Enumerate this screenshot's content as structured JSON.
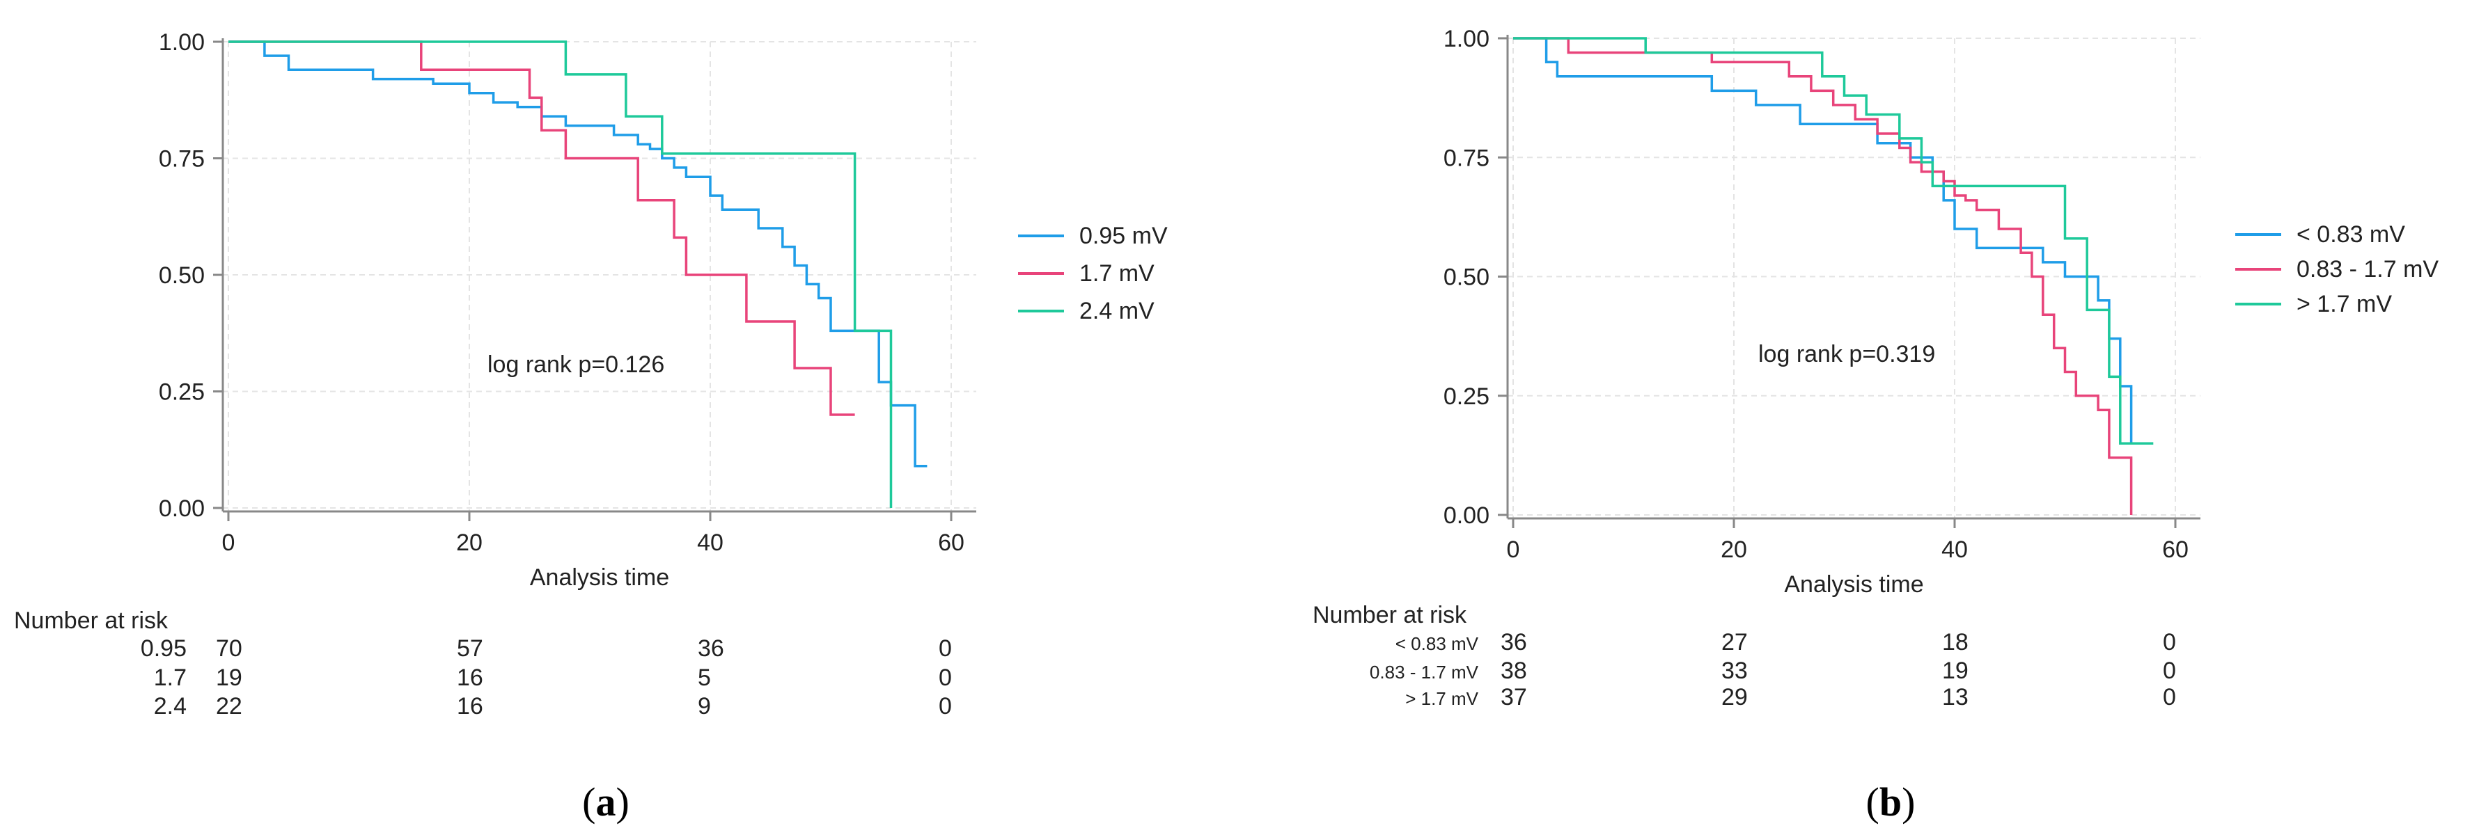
{
  "colors": {
    "blue": "#1f9de8",
    "pink": "#e8447a",
    "green": "#1ec99a",
    "axis": "#888888",
    "grid": "#e4e4e4"
  },
  "chart_data": [
    {
      "id": "a",
      "type": "line",
      "subtype": "kaplan-meier",
      "caption_letter": "a",
      "xlabel": "Analysis time",
      "ylabel": "",
      "xlim": [
        0,
        60
      ],
      "ylim": [
        0,
        1
      ],
      "x_ticks": [
        "0",
        "20",
        "40",
        "60"
      ],
      "y_ticks": [
        "0.00",
        "0.25",
        "0.50",
        "0.75",
        "1.00"
      ],
      "annotation": "log rank p=0.126",
      "legend_position": "right",
      "series": [
        {
          "name": "0.95 mV",
          "color_key": "blue",
          "x": [
            0,
            3,
            3,
            5,
            5,
            12,
            12,
            17,
            17,
            20,
            20,
            22,
            22,
            24,
            24,
            26,
            26,
            28,
            28,
            32,
            32,
            34,
            34,
            35,
            35,
            36,
            36,
            37,
            37,
            38,
            38,
            40,
            40,
            41,
            41,
            44,
            44,
            46,
            46,
            47,
            47,
            48,
            48,
            49,
            49,
            50,
            50,
            52,
            52,
            54,
            54,
            55,
            55,
            56,
            56,
            57,
            57,
            58
          ],
          "y": [
            1,
            1,
            0.97,
            0.97,
            0.94,
            0.94,
            0.92,
            0.92,
            0.91,
            0.91,
            0.89,
            0.89,
            0.87,
            0.87,
            0.86,
            0.86,
            0.84,
            0.84,
            0.82,
            0.82,
            0.8,
            0.8,
            0.78,
            0.78,
            0.77,
            0.77,
            0.75,
            0.75,
            0.73,
            0.73,
            0.71,
            0.71,
            0.67,
            0.67,
            0.64,
            0.64,
            0.6,
            0.6,
            0.56,
            0.56,
            0.52,
            0.52,
            0.48,
            0.48,
            0.45,
            0.45,
            0.38,
            0.38,
            0.38,
            0.38,
            0.27,
            0.27,
            0.22,
            0.22,
            0.22,
            0.22,
            0.09,
            0.09
          ]
        },
        {
          "name": "1.7 mV",
          "color_key": "pink",
          "x": [
            0,
            16,
            16,
            25,
            25,
            26,
            26,
            28,
            28,
            33,
            33,
            34,
            34,
            37,
            37,
            38,
            38,
            43,
            43,
            47,
            47,
            50,
            50,
            52
          ],
          "y": [
            1,
            1,
            0.94,
            0.94,
            0.88,
            0.88,
            0.81,
            0.81,
            0.75,
            0.75,
            0.75,
            0.75,
            0.66,
            0.66,
            0.58,
            0.58,
            0.5,
            0.5,
            0.4,
            0.4,
            0.3,
            0.3,
            0.2,
            0.2
          ]
        },
        {
          "name": "2.4 mV",
          "color_key": "green",
          "x": [
            0,
            28,
            28,
            33,
            33,
            36,
            36,
            52,
            52,
            55,
            55
          ],
          "y": [
            1,
            1,
            0.93,
            0.93,
            0.84,
            0.84,
            0.76,
            0.76,
            0.38,
            0.38,
            0.0
          ]
        }
      ],
      "risk_table": {
        "title": "Number at risk",
        "times": [
          0,
          20,
          40,
          60
        ],
        "rows": [
          {
            "label": "0.95",
            "values": [
              "70",
              "57",
              "36",
              "0"
            ]
          },
          {
            "label": "1.7",
            "values": [
              "19",
              "16",
              "5",
              "0"
            ]
          },
          {
            "label": "2.4",
            "values": [
              "22",
              "16",
              "9",
              "0"
            ]
          }
        ]
      }
    },
    {
      "id": "b",
      "type": "line",
      "subtype": "kaplan-meier",
      "caption_letter": "b",
      "xlabel": "Analysis time",
      "ylabel": "",
      "xlim": [
        0,
        60
      ],
      "ylim": [
        0,
        1
      ],
      "x_ticks": [
        "0",
        "20",
        "40",
        "60"
      ],
      "y_ticks": [
        "0.00",
        "0.25",
        "0.50",
        "0.75",
        "1.00"
      ],
      "annotation": "log rank p=0.319",
      "legend_position": "right",
      "series": [
        {
          "name": "< 0.83 mV",
          "color_key": "blue",
          "x": [
            0,
            3,
            3,
            4,
            4,
            18,
            18,
            22,
            22,
            26,
            26,
            33,
            33,
            36,
            36,
            38,
            38,
            39,
            39,
            40,
            40,
            42,
            42,
            48,
            48,
            50,
            50,
            53,
            53,
            54,
            54,
            55,
            55,
            56,
            56
          ],
          "y": [
            1,
            1,
            0.95,
            0.95,
            0.92,
            0.92,
            0.89,
            0.89,
            0.86,
            0.86,
            0.82,
            0.82,
            0.78,
            0.78,
            0.75,
            0.75,
            0.72,
            0.72,
            0.66,
            0.66,
            0.6,
            0.6,
            0.56,
            0.56,
            0.53,
            0.53,
            0.5,
            0.5,
            0.45,
            0.45,
            0.37,
            0.37,
            0.27,
            0.27,
            0.15
          ]
        },
        {
          "name": "0.83 - 1.7 mV",
          "color_key": "pink",
          "x": [
            0,
            5,
            5,
            12,
            12,
            18,
            18,
            25,
            25,
            27,
            27,
            29,
            29,
            31,
            31,
            33,
            33,
            35,
            35,
            36,
            36,
            37,
            37,
            39,
            39,
            40,
            40,
            41,
            41,
            42,
            42,
            44,
            44,
            46,
            46,
            47,
            47,
            48,
            48,
            49,
            49,
            50,
            50,
            51,
            51,
            53,
            53,
            54,
            54,
            56,
            56
          ],
          "y": [
            1,
            1,
            0.97,
            0.97,
            0.97,
            0.97,
            0.95,
            0.95,
            0.92,
            0.92,
            0.89,
            0.89,
            0.86,
            0.86,
            0.83,
            0.83,
            0.8,
            0.8,
            0.77,
            0.77,
            0.74,
            0.74,
            0.72,
            0.72,
            0.7,
            0.7,
            0.67,
            0.67,
            0.66,
            0.66,
            0.64,
            0.64,
            0.6,
            0.6,
            0.55,
            0.55,
            0.5,
            0.5,
            0.42,
            0.42,
            0.35,
            0.35,
            0.3,
            0.3,
            0.25,
            0.25,
            0.22,
            0.22,
            0.12,
            0.12,
            0.0
          ]
        },
        {
          "name": "> 1.7 mV",
          "color_key": "green",
          "x": [
            0,
            12,
            12,
            28,
            28,
            30,
            30,
            32,
            32,
            35,
            35,
            37,
            37,
            38,
            38,
            40,
            40,
            50,
            50,
            52,
            52,
            54,
            54,
            55,
            55,
            58
          ],
          "y": [
            1,
            1,
            0.97,
            0.97,
            0.92,
            0.92,
            0.88,
            0.88,
            0.84,
            0.84,
            0.79,
            0.79,
            0.74,
            0.74,
            0.69,
            0.69,
            0.69,
            0.69,
            0.58,
            0.58,
            0.43,
            0.43,
            0.29,
            0.29,
            0.15,
            0.15
          ]
        }
      ],
      "risk_table": {
        "title": "Number at risk",
        "times": [
          0,
          20,
          40,
          60
        ],
        "rows": [
          {
            "label": "< 0.83 mV",
            "values": [
              "36",
              "27",
              "18",
              "0"
            ]
          },
          {
            "label": "0.83 - 1.7 mV",
            "values": [
              "38",
              "33",
              "19",
              "0"
            ]
          },
          {
            "label": "> 1.7 mV",
            "values": [
              "37",
              "29",
              "13",
              "0"
            ]
          }
        ]
      }
    }
  ]
}
